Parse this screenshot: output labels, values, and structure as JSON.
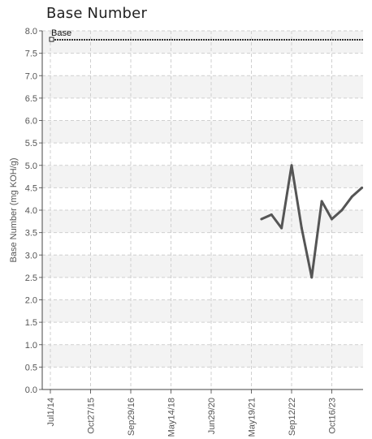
{
  "chart_data": {
    "type": "line",
    "title": "Base Number",
    "ylabel": "Base Number (mg KOH/g)",
    "xlabel": "",
    "ylim": [
      0,
      8
    ],
    "y_ticks": [
      "0.0",
      "0.5",
      "1.0",
      "1.5",
      "2.0",
      "2.5",
      "3.0",
      "3.5",
      "4.0",
      "4.5",
      "5.0",
      "5.5",
      "6.0",
      "6.5",
      "7.0",
      "7.5",
      "8.0"
    ],
    "x_tick_labels": [
      "Jul1/14",
      "Oct27/15",
      "Sep29/16",
      "May14/18",
      "Jun29/20",
      "May19/21",
      "Sep12/22",
      "Oct16/23"
    ],
    "grid": true,
    "reference_line": {
      "name": "Base",
      "value": 7.8
    },
    "series": [
      {
        "x_index": [
          5.25,
          5.5,
          5.75,
          6.0,
          6.25,
          6.5,
          6.75,
          7.0,
          7.25,
          7.5,
          7.75
        ],
        "values": [
          3.8,
          3.9,
          3.6,
          5.0,
          3.6,
          2.5,
          4.2,
          3.8,
          4.0,
          4.3,
          4.5
        ]
      }
    ],
    "colors": {
      "series": "#555555",
      "reference": "#333333",
      "band": "#f3f3f3",
      "grid": "#cfcfcf"
    }
  }
}
